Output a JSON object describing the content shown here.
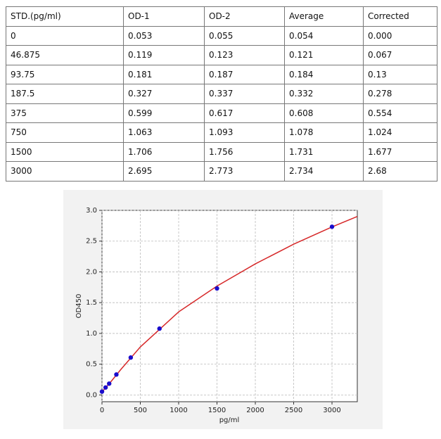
{
  "table": {
    "header": [
      "STD.(pg/ml)",
      "OD-1",
      "OD-2",
      "Average",
      "Corrected"
    ],
    "rows": [
      [
        "0",
        "0.053",
        "0.055",
        "0.054",
        "0.000"
      ],
      [
        "46.875",
        "0.119",
        "0.123",
        "0.121",
        "0.067"
      ],
      [
        "93.75",
        "0.181",
        "0.187",
        "0.184",
        "0.13"
      ],
      [
        "187.5",
        "0.327",
        "0.337",
        "0.332",
        "0.278"
      ],
      [
        "375",
        "0.599",
        "0.617",
        "0.608",
        "0.554"
      ],
      [
        "750",
        "1.063",
        "1.093",
        "1.078",
        "1.024"
      ],
      [
        "1500",
        "1.706",
        "1.756",
        "1.731",
        "1.677"
      ],
      [
        "3000",
        "2.695",
        "2.773",
        "2.734",
        "2.68"
      ]
    ]
  },
  "chart_data": {
    "type": "scatter",
    "x_label": "pg/ml",
    "y_label": "OD450",
    "xlim": [
      0,
      3330
    ],
    "xticks": [
      0,
      500,
      1000,
      1500,
      2000,
      2500,
      3000
    ],
    "ylim": [
      -0.11,
      3.0
    ],
    "yticks": [
      {
        "value": 0,
        "label": "0.0"
      },
      {
        "value": 0.5,
        "label": "0.5"
      },
      {
        "value": 1,
        "label": "1.0"
      },
      {
        "value": 1.5,
        "label": "1.5"
      },
      {
        "value": 2,
        "label": "2.0"
      },
      {
        "value": 2.5,
        "label": "2.5"
      },
      {
        "value": 3,
        "label": "3.0"
      }
    ],
    "grid": true,
    "series": [
      {
        "type": "line",
        "color": "#d62728",
        "x": [
          0,
          100,
          250,
          500,
          1000,
          1500,
          2000,
          2500,
          3000,
          3330
        ],
        "values": [
          0.05,
          0.19,
          0.42,
          0.78,
          1.35,
          1.77,
          2.13,
          2.45,
          2.73,
          2.9
        ]
      },
      {
        "type": "scatter",
        "color": "#1a0dcc",
        "x": [
          0,
          46.875,
          93.75,
          187.5,
          375,
          750,
          1500,
          3000
        ],
        "values": [
          0.054,
          0.121,
          0.184,
          0.332,
          0.608,
          1.078,
          1.731,
          2.734
        ]
      }
    ]
  }
}
